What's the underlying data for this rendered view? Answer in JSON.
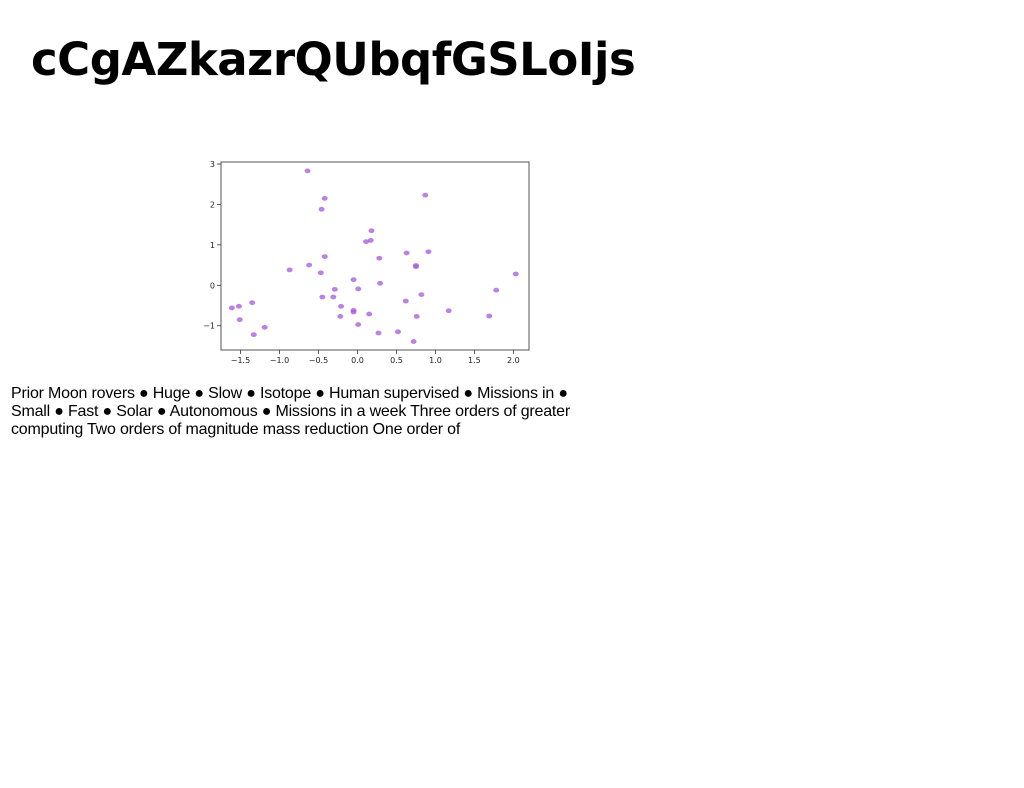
{
  "title": "cCgAZkazrQUbqfGSLoIjs",
  "body_text": "Prior Moon rovers ● Huge ● Slow ● Isotope ● Human supervised ● Missions in ● Small ● Fast ● Solar ● Autonomous ● Missions in a week Three orders of greater computing Two orders of magnitude mass reduction One order of",
  "chart_data": {
    "type": "scatter",
    "title": "",
    "xlabel": "",
    "ylabel": "",
    "xlim": [
      -1.75,
      2.2
    ],
    "ylim": [
      -1.6,
      3.05
    ],
    "xticks": [
      -1.5,
      -1.0,
      -0.5,
      0.0,
      0.5,
      1.0,
      1.5,
      2.0
    ],
    "xtick_labels": [
      "−1.5",
      "−1.0",
      "−0.5",
      "0.0",
      "0.5",
      "1.0",
      "1.5",
      "2.0"
    ],
    "yticks": [
      -1,
      0,
      1,
      2,
      3
    ],
    "ytick_labels": [
      "−1",
      "0",
      "1",
      "2",
      "3"
    ],
    "grid": false,
    "point_color": "#a45ad6",
    "x": [
      -0.64,
      -0.42,
      -0.46,
      0.87,
      0.18,
      0.11,
      0.17,
      0.91,
      0.63,
      0.28,
      -0.42,
      -0.62,
      -0.87,
      -0.47,
      0.75,
      0.75,
      2.03,
      -0.05,
      0.29,
      -0.29,
      0.01,
      1.78,
      -0.45,
      -0.31,
      0.82,
      0.62,
      -1.35,
      -1.52,
      -0.21,
      -1.61,
      -0.05,
      1.17,
      -0.05,
      0.15,
      -0.22,
      1.69,
      0.76,
      -1.51,
      0.01,
      -1.19,
      0.52,
      0.27,
      -1.33,
      0.72
    ],
    "y": [
      2.83,
      2.15,
      1.88,
      2.23,
      1.35,
      1.08,
      1.11,
      0.83,
      0.8,
      0.67,
      0.71,
      0.5,
      0.38,
      0.31,
      0.49,
      0.46,
      0.28,
      0.14,
      0.05,
      -0.1,
      -0.09,
      -0.12,
      -0.29,
      -0.29,
      -0.23,
      -0.39,
      -0.43,
      -0.52,
      -0.52,
      -0.56,
      -0.62,
      -0.63,
      -0.66,
      -0.71,
      -0.77,
      -0.76,
      -0.77,
      -0.85,
      -0.97,
      -1.04,
      -1.15,
      -1.18,
      -1.22,
      -1.39
    ]
  }
}
